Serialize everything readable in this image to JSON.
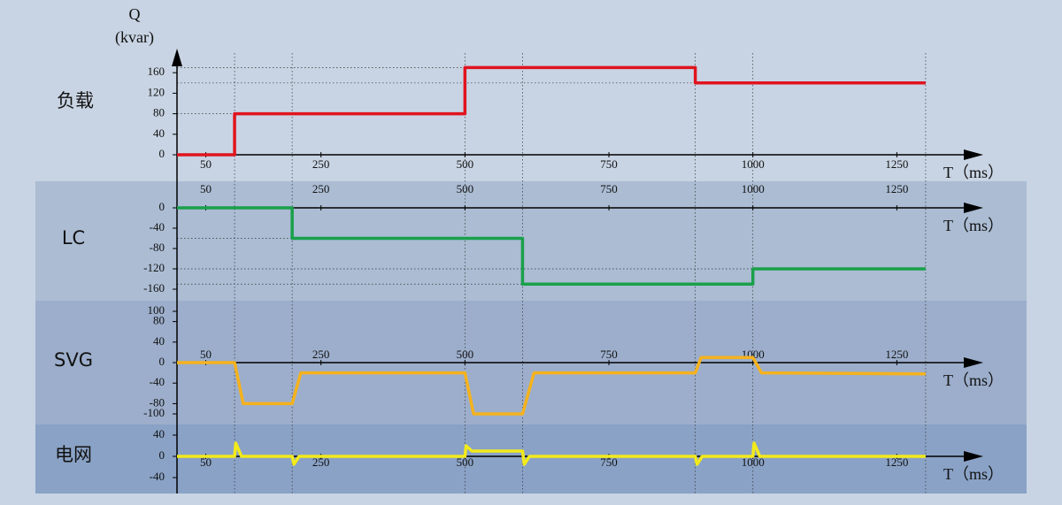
{
  "chart_data": [
    {
      "type": "step",
      "title": "负载",
      "ylabel": "Q",
      "ylabel_unit": "(kvar)",
      "xlabel": "T（ms）",
      "color": "#e0141e",
      "x": [
        0,
        100,
        100,
        500,
        500,
        900,
        900,
        1300
      ],
      "values": [
        0,
        0,
        80,
        80,
        170,
        170,
        140,
        140
      ],
      "xlim": [
        0,
        1400
      ],
      "xticks": [
        50,
        250,
        500,
        750,
        1000,
        1250
      ],
      "ylim": [
        0,
        200
      ],
      "yticks": [
        0,
        40,
        80,
        120,
        160
      ]
    },
    {
      "type": "step",
      "title": "LC",
      "xlabel": "T（ms）",
      "color": "#1aa04a",
      "x": [
        0,
        200,
        200,
        600,
        600,
        1000,
        1000,
        1300
      ],
      "values": [
        0,
        0,
        -60,
        -60,
        -150,
        -150,
        -120,
        -120
      ],
      "xlim": [
        0,
        1400
      ],
      "xticks": [
        50,
        250,
        500,
        750,
        1000,
        1250
      ],
      "ylim": [
        -170,
        10
      ],
      "yticks": [
        0,
        -40,
        -80,
        -120,
        -160
      ]
    },
    {
      "type": "line",
      "title": "SVG",
      "xlabel": "T（ms）",
      "color": "#f5b21e",
      "x": [
        0,
        100,
        115,
        200,
        215,
        500,
        515,
        600,
        620,
        900,
        910,
        1000,
        1015,
        1300
      ],
      "values": [
        0,
        0,
        -80,
        -80,
        -20,
        -20,
        -100,
        -100,
        -20,
        -20,
        10,
        10,
        -20,
        -22
      ],
      "xlim": [
        0,
        1400
      ],
      "xticks": [
        50,
        250,
        500,
        750,
        1000,
        1250
      ],
      "ylim": [
        -110,
        110
      ],
      "yticks": [
        100,
        80,
        40,
        0,
        -40,
        -80,
        -100
      ]
    },
    {
      "type": "line",
      "title": "电网",
      "xlabel": "T（ms）",
      "color": "#f2ea1a",
      "x": [
        0,
        100,
        102,
        112,
        200,
        203,
        212,
        500,
        502,
        512,
        600,
        603,
        612,
        900,
        903,
        912,
        1000,
        1002,
        1012,
        1300
      ],
      "values": [
        0,
        0,
        25,
        0,
        0,
        -15,
        0,
        0,
        20,
        10,
        10,
        -15,
        0,
        0,
        -15,
        0,
        0,
        25,
        0,
        0
      ],
      "xlim": [
        0,
        1400
      ],
      "xticks": [
        50,
        250,
        500,
        750,
        1000,
        1250
      ],
      "ylim": [
        -50,
        50
      ],
      "yticks": [
        40,
        0,
        -40
      ]
    }
  ]
}
